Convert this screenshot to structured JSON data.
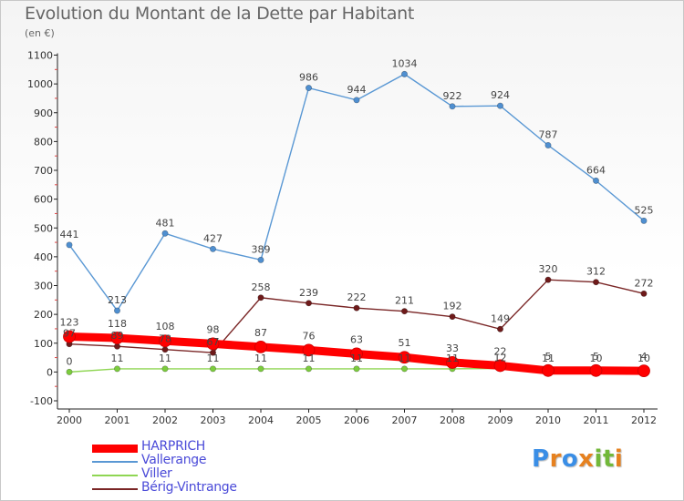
{
  "header": {
    "title": "Evolution du Montant de la Dette par Habitant",
    "subtitle": "(en €)"
  },
  "brand": {
    "name": "Proxiti",
    "letters": [
      "P",
      "r",
      "o",
      "x",
      "i",
      "t",
      "i"
    ],
    "letter_colors": [
      "#3a8ee6",
      "#e6811f",
      "#3a8ee6",
      "#e6811f",
      "#72b83a",
      "#72b83a",
      "#e6811f"
    ]
  },
  "chart_data": {
    "type": "line",
    "title": "Evolution du Montant de la Dette par Habitant",
    "subtitle": "(en €)",
    "xlabel": "",
    "ylabel": "",
    "ylim": [
      -100,
      1100
    ],
    "yticks": [
      -100,
      0,
      100,
      200,
      300,
      400,
      500,
      600,
      700,
      800,
      900,
      1000,
      1100
    ],
    "ytick_labels": [
      "-100",
      "0",
      "100",
      "200",
      "300",
      "400",
      "500",
      "600",
      "700",
      "800",
      "900",
      "1000",
      "1100"
    ],
    "categories": [
      "2000",
      "2001",
      "2002",
      "2003",
      "2004",
      "2005",
      "2006",
      "2007",
      "2008",
      "2009",
      "2010",
      "2011",
      "2012"
    ],
    "grid": false,
    "legend_position": "bottom-left",
    "series": [
      {
        "name": "Vallerange",
        "color": "#4f8fd0",
        "line_color": "#5a98d4",
        "values": [
          441,
          213,
          481,
          427,
          389,
          986,
          944,
          1034,
          922,
          924,
          787,
          664,
          525
        ],
        "labels": [
          "441",
          "213",
          "481",
          "427",
          "389",
          "986",
          "944",
          "1034",
          "922",
          "924",
          "787",
          "664",
          "525"
        ]
      },
      {
        "name": "Bérig-Vintrange",
        "color": "#6e1a1a",
        "line_color": "#7a2626",
        "values": [
          97,
          89,
          78,
          67,
          258,
          239,
          222,
          211,
          192,
          149,
          320,
          312,
          272
        ],
        "labels": [
          "97",
          "89",
          "78",
          "67",
          "258",
          "239",
          "222",
          "211",
          "192",
          "149",
          "320",
          "312",
          "272"
        ]
      },
      {
        "name": "Viller",
        "color": "#7ccc3e",
        "line_color": "#8fd653",
        "values": [
          0,
          11,
          11,
          11,
          11,
          11,
          11,
          11,
          11,
          12,
          11,
          10,
          10
        ],
        "labels": [
          "0",
          "11",
          "11",
          "11",
          "11",
          "11",
          "11",
          "11",
          "11",
          "12",
          "11",
          "10",
          "10"
        ]
      },
      {
        "name": "HARPRICH",
        "color": "#ff0000",
        "line_color": "#ff0000",
        "values": [
          123,
          118,
          108,
          98,
          87,
          76,
          63,
          51,
          33,
          22,
          5,
          5,
          4
        ],
        "labels": [
          "123",
          "118",
          "108",
          "98",
          "87",
          "76",
          "63",
          "51",
          "33",
          "22",
          "5",
          "5",
          "4"
        ]
      }
    ]
  },
  "legend": {
    "items": [
      {
        "label": "HARPRICH",
        "color": "#ff0000",
        "thickness": 9
      },
      {
        "label": "Vallerange",
        "color": "#5a98d4",
        "thickness": 2
      },
      {
        "label": "Viller",
        "color": "#8fd653",
        "thickness": 2
      },
      {
        "label": "Bérig-Vintrange",
        "color": "#7a2626",
        "thickness": 2
      }
    ]
  }
}
